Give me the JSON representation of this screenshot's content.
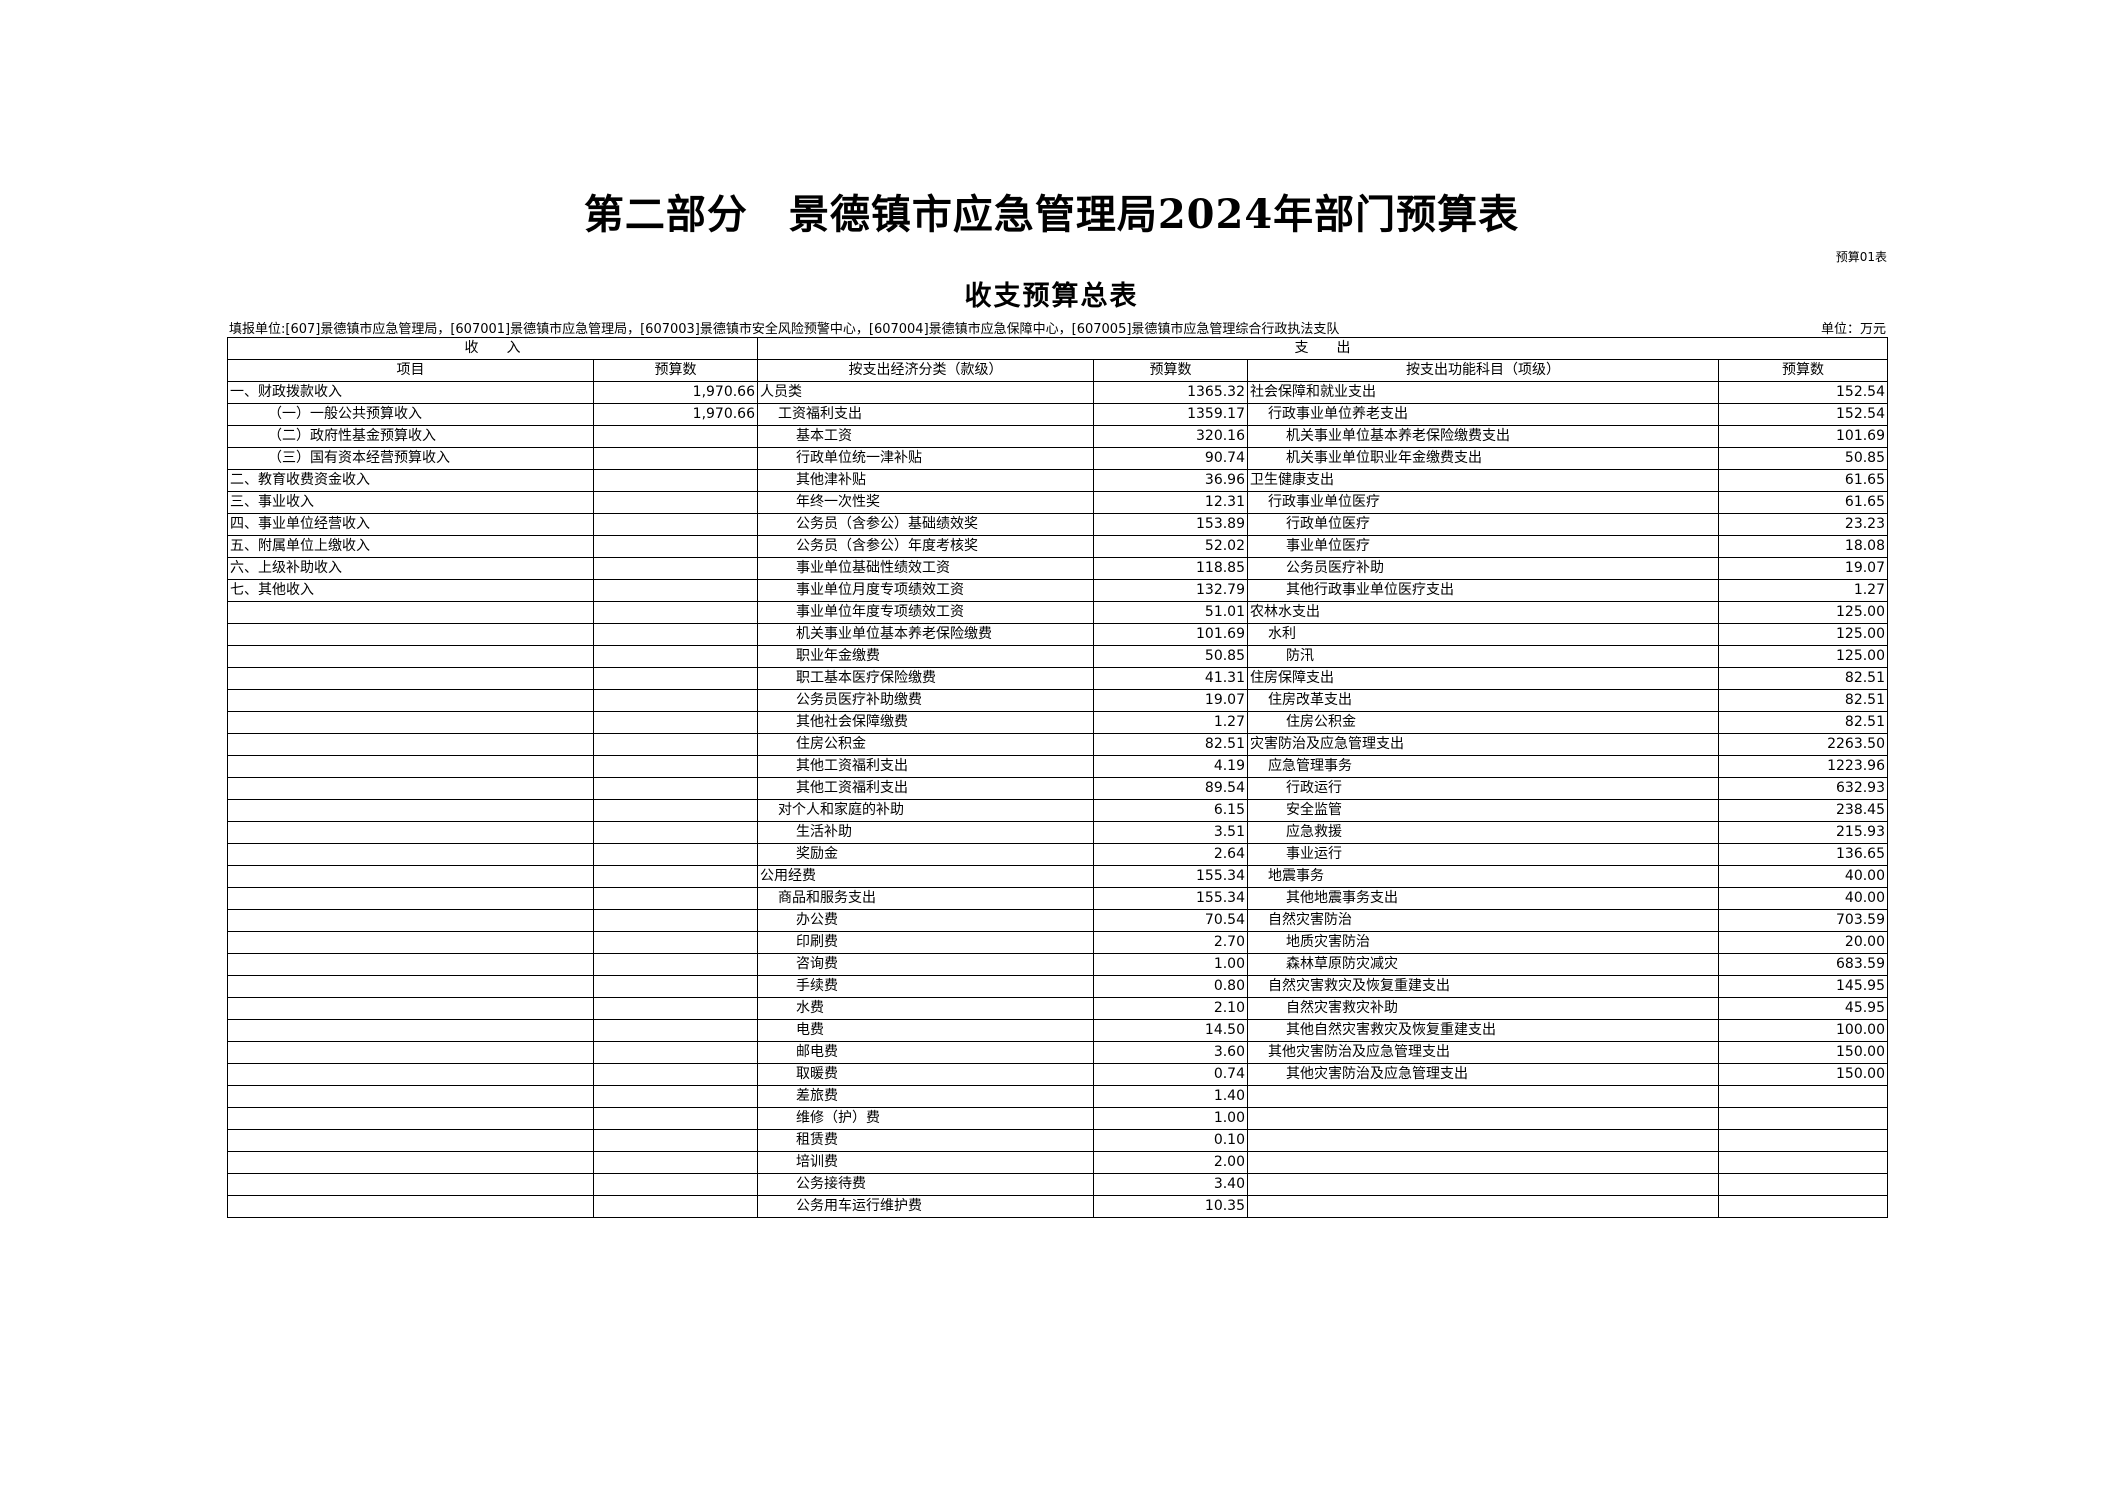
{
  "title": "第二部分　景德镇市应急管理局2024年部门预算表",
  "form_no": "预算01表",
  "subtitle": "收支预算总表",
  "unit_line": "填报单位:[607]景德镇市应急管理局，[607001]景德镇市应急管理局，[607003]景德镇市安全风险预警中心，[607004]景德镇市应急保障中心，[607005]景德镇市应急管理综合行政执法支队",
  "unit_right": "单位：万元",
  "header": {
    "income": "收　　入",
    "expense": "支　　出",
    "cols": [
      "项目",
      "预算数",
      "按支出经济分类（款级）",
      "预算数",
      "按支出功能科目（项级）",
      "预算数"
    ]
  },
  "income_rows": [
    {
      "label": "一、财政拨款收入",
      "value": "1,970.66",
      "level": 0
    },
    {
      "label": "（一）一般公共预算收入",
      "value": "1,970.66",
      "level": 1
    },
    {
      "label": "（二）政府性基金预算收入",
      "value": "",
      "level": 1
    },
    {
      "label": "（三）国有资本经营预算收入",
      "value": "",
      "level": 1
    },
    {
      "label": "二、教育收费资金收入",
      "value": "",
      "level": 0
    },
    {
      "label": "三、事业收入",
      "value": "",
      "level": 0
    },
    {
      "label": "四、事业单位经营收入",
      "value": "",
      "level": 0
    },
    {
      "label": "五、附属单位上缴收入",
      "value": "",
      "level": 0
    },
    {
      "label": "六、上级补助收入",
      "value": "",
      "level": 0
    },
    {
      "label": "七、其他收入",
      "value": "",
      "level": 0
    }
  ],
  "economic_rows": [
    {
      "label": "人员类",
      "value": "1365.32",
      "level": 0
    },
    {
      "label": "工资福利支出",
      "value": "1359.17",
      "level": 1
    },
    {
      "label": "基本工资",
      "value": "320.16",
      "level": 2
    },
    {
      "label": "行政单位统一津补贴",
      "value": "90.74",
      "level": 2
    },
    {
      "label": "其他津补贴",
      "value": "36.96",
      "level": 2
    },
    {
      "label": "年终一次性奖",
      "value": "12.31",
      "level": 2
    },
    {
      "label": "公务员（含参公）基础绩效奖",
      "value": "153.89",
      "level": 2
    },
    {
      "label": "公务员（含参公）年度考核奖",
      "value": "52.02",
      "level": 2
    },
    {
      "label": "事业单位基础性绩效工资",
      "value": "118.85",
      "level": 2
    },
    {
      "label": "事业单位月度专项绩效工资",
      "value": "132.79",
      "level": 2
    },
    {
      "label": "事业单位年度专项绩效工资",
      "value": "51.01",
      "level": 2
    },
    {
      "label": "机关事业单位基本养老保险缴费",
      "value": "101.69",
      "level": 2
    },
    {
      "label": "职业年金缴费",
      "value": "50.85",
      "level": 2
    },
    {
      "label": "职工基本医疗保险缴费",
      "value": "41.31",
      "level": 2
    },
    {
      "label": "公务员医疗补助缴费",
      "value": "19.07",
      "level": 2
    },
    {
      "label": "其他社会保障缴费",
      "value": "1.27",
      "level": 2
    },
    {
      "label": "住房公积金",
      "value": "82.51",
      "level": 2
    },
    {
      "label": "其他工资福利支出",
      "value": "4.19",
      "level": 2
    },
    {
      "label": "其他工资福利支出",
      "value": "89.54",
      "level": 2
    },
    {
      "label": "对个人和家庭的补助",
      "value": "6.15",
      "level": 1
    },
    {
      "label": "生活补助",
      "value": "3.51",
      "level": 2
    },
    {
      "label": "奖励金",
      "value": "2.64",
      "level": 2
    },
    {
      "label": "公用经费",
      "value": "155.34",
      "level": 0
    },
    {
      "label": "商品和服务支出",
      "value": "155.34",
      "level": 1
    },
    {
      "label": "办公费",
      "value": "70.54",
      "level": 2
    },
    {
      "label": "印刷费",
      "value": "2.70",
      "level": 2
    },
    {
      "label": "咨询费",
      "value": "1.00",
      "level": 2
    },
    {
      "label": "手续费",
      "value": "0.80",
      "level": 2
    },
    {
      "label": "水费",
      "value": "2.10",
      "level": 2
    },
    {
      "label": "电费",
      "value": "14.50",
      "level": 2
    },
    {
      "label": "邮电费",
      "value": "3.60",
      "level": 2
    },
    {
      "label": "取暖费",
      "value": "0.74",
      "level": 2
    },
    {
      "label": "差旅费",
      "value": "1.40",
      "level": 2
    },
    {
      "label": "维修（护）费",
      "value": "1.00",
      "level": 2
    },
    {
      "label": "租赁费",
      "value": "0.10",
      "level": 2
    },
    {
      "label": "培训费",
      "value": "2.00",
      "level": 2
    },
    {
      "label": "公务接待费",
      "value": "3.40",
      "level": 2
    },
    {
      "label": "公务用车运行维护费",
      "value": "10.35",
      "level": 2
    }
  ],
  "functional_rows": [
    {
      "label": "社会保障和就业支出",
      "value": "152.54",
      "level": 0
    },
    {
      "label": "行政事业单位养老支出",
      "value": "152.54",
      "level": 1
    },
    {
      "label": "机关事业单位基本养老保险缴费支出",
      "value": "101.69",
      "level": 2
    },
    {
      "label": "机关事业单位职业年金缴费支出",
      "value": "50.85",
      "level": 2
    },
    {
      "label": "卫生健康支出",
      "value": "61.65",
      "level": 0
    },
    {
      "label": "行政事业单位医疗",
      "value": "61.65",
      "level": 1
    },
    {
      "label": "行政单位医疗",
      "value": "23.23",
      "level": 2
    },
    {
      "label": "事业单位医疗",
      "value": "18.08",
      "level": 2
    },
    {
      "label": "公务员医疗补助",
      "value": "19.07",
      "level": 2
    },
    {
      "label": "其他行政事业单位医疗支出",
      "value": "1.27",
      "level": 2
    },
    {
      "label": "农林水支出",
      "value": "125.00",
      "level": 0
    },
    {
      "label": "水利",
      "value": "125.00",
      "level": 1
    },
    {
      "label": "防汛",
      "value": "125.00",
      "level": 2
    },
    {
      "label": "住房保障支出",
      "value": "82.51",
      "level": 0
    },
    {
      "label": "住房改革支出",
      "value": "82.51",
      "level": 1
    },
    {
      "label": "住房公积金",
      "value": "82.51",
      "level": 2
    },
    {
      "label": "灾害防治及应急管理支出",
      "value": "2263.50",
      "level": 0
    },
    {
      "label": "应急管理事务",
      "value": "1223.96",
      "level": 1
    },
    {
      "label": "行政运行",
      "value": "632.93",
      "level": 2
    },
    {
      "label": "安全监管",
      "value": "238.45",
      "level": 2
    },
    {
      "label": "应急救援",
      "value": "215.93",
      "level": 2
    },
    {
      "label": "事业运行",
      "value": "136.65",
      "level": 2
    },
    {
      "label": "地震事务",
      "value": "40.00",
      "level": 1
    },
    {
      "label": "其他地震事务支出",
      "value": "40.00",
      "level": 2
    },
    {
      "label": "自然灾害防治",
      "value": "703.59",
      "level": 1
    },
    {
      "label": "地质灾害防治",
      "value": "20.00",
      "level": 2
    },
    {
      "label": "森林草原防灾减灾",
      "value": "683.59",
      "level": 2
    },
    {
      "label": "自然灾害救灾及恢复重建支出",
      "value": "145.95",
      "level": 1
    },
    {
      "label": "自然灾害救灾补助",
      "value": "45.95",
      "level": 2
    },
    {
      "label": "其他自然灾害救灾及恢复重建支出",
      "value": "100.00",
      "level": 2
    },
    {
      "label": "其他灾害防治及应急管理支出",
      "value": "150.00",
      "level": 1
    },
    {
      "label": "其他灾害防治及应急管理支出",
      "value": "150.00",
      "level": 2
    }
  ]
}
